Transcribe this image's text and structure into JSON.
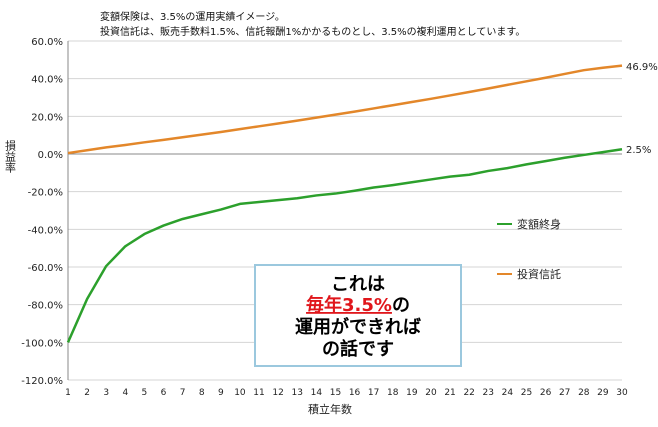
{
  "chart_data": {
    "type": "line",
    "notes": [
      "変額保険は、3.5%の運用実績イメージ。",
      "投資信託は、販売手数料1.5%、信託報酬1%かかるものとし、3.5%の複利運用としています。"
    ],
    "xlabel": "積立年数",
    "ylabel": "損益率",
    "ylim": [
      -120,
      60
    ],
    "yticks": [
      -120,
      -100,
      -80,
      -60,
      -40,
      -20,
      0,
      20,
      40,
      60
    ],
    "ytick_labels": [
      "-120.0%",
      "-100.0%",
      "-80.0%",
      "-60.0%",
      "-40.0%",
      "-20.0%",
      "0.0%",
      "20.0%",
      "40.0%",
      "60.0%"
    ],
    "x": [
      1,
      2,
      3,
      4,
      5,
      6,
      7,
      8,
      9,
      10,
      11,
      12,
      13,
      14,
      15,
      16,
      17,
      18,
      19,
      20,
      21,
      22,
      23,
      24,
      25,
      26,
      27,
      28,
      29,
      30
    ],
    "series": [
      {
        "name": "変額終身",
        "color": "#2ca02c",
        "values": [
          -100.0,
          -77.0,
          -59.5,
          -49.0,
          -42.5,
          -38.0,
          -34.5,
          -32.0,
          -29.5,
          -26.5,
          -25.5,
          -24.5,
          -23.5,
          -22.0,
          -21.0,
          -19.5,
          -17.8,
          -16.5,
          -15.0,
          -13.5,
          -12.0,
          -11.0,
          -9.0,
          -7.5,
          -5.5,
          -3.8,
          -2.0,
          -0.5,
          1.0,
          2.5
        ]
      },
      {
        "name": "投資信託",
        "color": "#e3872a",
        "values": [
          0.5,
          2.0,
          3.5,
          4.8,
          6.2,
          7.5,
          8.9,
          10.3,
          11.7,
          13.2,
          14.7,
          16.2,
          17.7,
          19.3,
          20.9,
          22.5,
          24.2,
          25.9,
          27.6,
          29.3,
          31.1,
          32.9,
          34.8,
          36.7,
          38.6,
          40.5,
          42.5,
          44.5,
          45.8,
          46.9
        ]
      }
    ],
    "end_labels": [
      "2.5%",
      "46.9%"
    ],
    "legend_position": "right",
    "grid": "horizontal",
    "callout": {
      "line1": "これは",
      "line2_highlight": "毎年3.5%",
      "line2_rest": "の",
      "line3": "運用ができれば",
      "line4": "の話です"
    }
  }
}
